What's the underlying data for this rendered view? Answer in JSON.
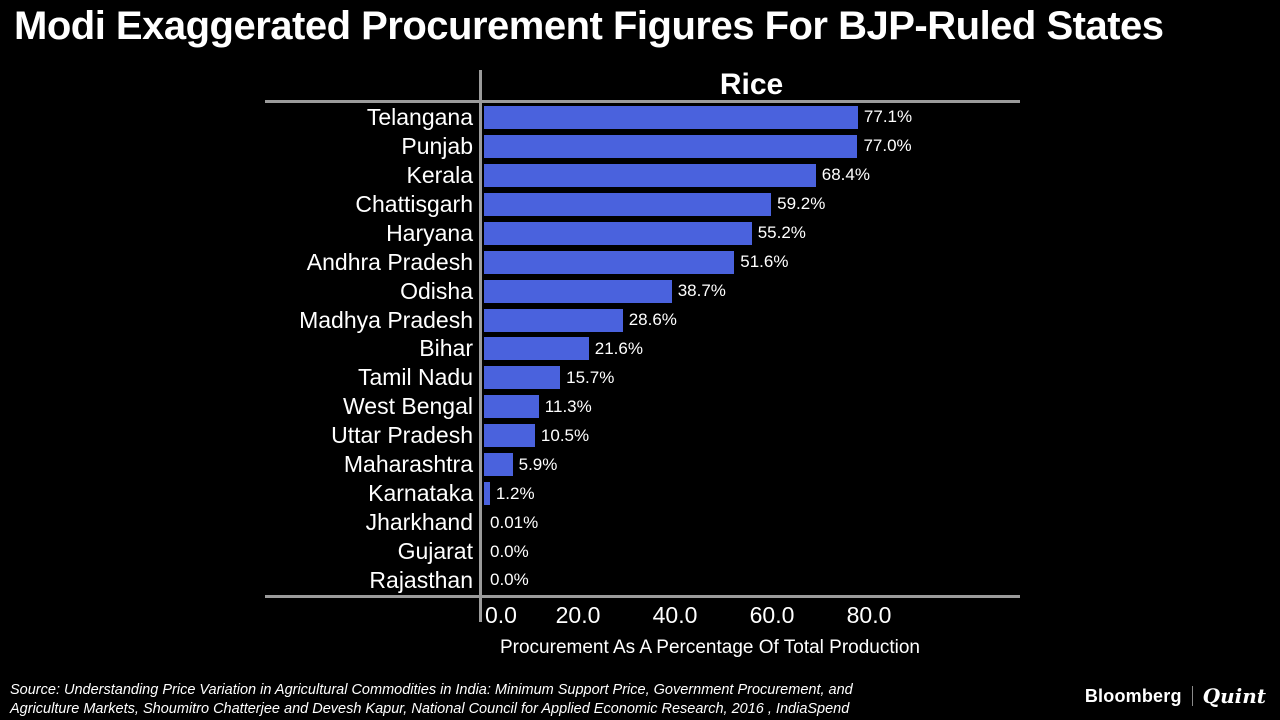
{
  "page": {
    "title": "Modi Exaggerated Procurement Figures For BJP-Ruled States"
  },
  "chart_data": {
    "type": "bar",
    "orientation": "horizontal",
    "title": "Rice",
    "categories": [
      "Telangana",
      "Punjab",
      "Kerala",
      "Chattisgarh",
      "Haryana",
      "Andhra Pradesh",
      "Odisha",
      "Madhya Pradesh",
      "Bihar",
      "Tamil Nadu",
      "West Bengal",
      "Uttar Pradesh",
      "Maharashtra",
      "Karnataka",
      "Jharkhand",
      "Gujarat",
      "Rajasthan"
    ],
    "values": [
      77.1,
      77.0,
      68.4,
      59.2,
      55.2,
      51.6,
      38.7,
      28.6,
      21.6,
      15.7,
      11.3,
      10.5,
      5.9,
      1.2,
      0.01,
      0.0,
      0.0
    ],
    "value_labels": [
      "77.1%",
      "77.0%",
      "68.4%",
      "59.2%",
      "55.2%",
      "51.6%",
      "38.7%",
      "28.6%",
      "21.6%",
      "15.7%",
      "11.3%",
      "10.5%",
      "5.9%",
      "1.2%",
      "0.01%",
      "0.0%",
      "0.0%"
    ],
    "xlabel": "Procurement As A Percentage Of Total Production",
    "xticks": [
      "0.0",
      "20.0",
      "40.0",
      "60.0",
      "80.0"
    ],
    "xtick_values": [
      0,
      20,
      40,
      60,
      80
    ],
    "xlim": [
      0,
      110
    ],
    "grid": false,
    "legend": false,
    "bar_color": "#4a62dd",
    "frame_color": "#9b9b9b",
    "background_color": "#000000",
    "text_color": "#ffffff"
  },
  "footer": {
    "source_line1": "Source: Understanding Price Variation in Agricultural Commodities in India: Minimum Support Price, Government Procurement, and",
    "source_line2": "Agriculture Markets, Shoumitro Chatterjee and Devesh Kapur, National Council for Applied Economic Research, 2016 , IndiaSpend",
    "brand_bloomberg": "Bloomberg",
    "brand_quint": "Quint"
  }
}
